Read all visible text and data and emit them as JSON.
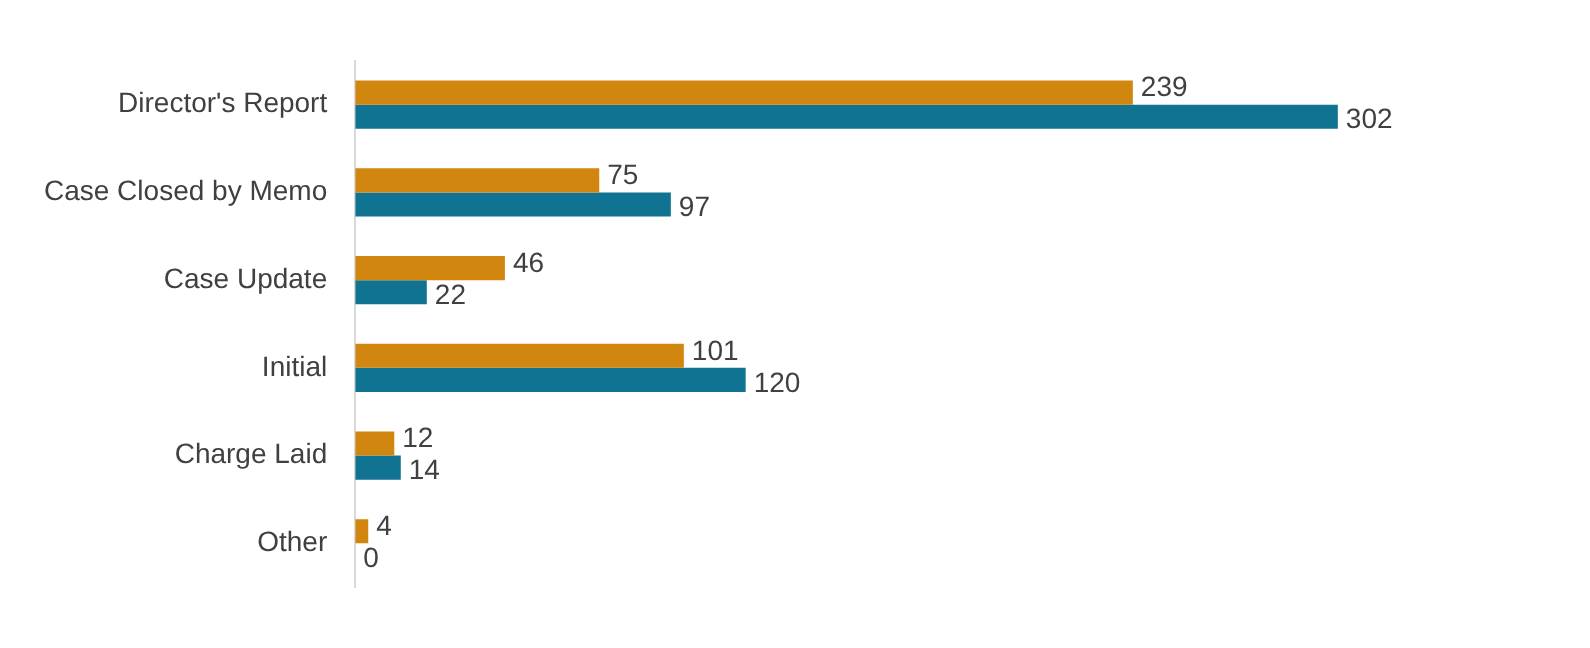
{
  "chart_data": {
    "type": "bar",
    "orientation": "horizontal",
    "categories": [
      "Director's Report",
      "Case Closed by Memo",
      "Case Update",
      "Initial",
      "Charge Laid",
      "Other"
    ],
    "series": [
      {
        "color": "#d0860f",
        "values": [
          239,
          75,
          46,
          101,
          12,
          4
        ]
      },
      {
        "color": "#0f7391",
        "values": [
          302,
          97,
          22,
          120,
          14,
          0
        ]
      }
    ],
    "data_labels": true,
    "grid": false,
    "legend": false,
    "tick_labels": "y"
  }
}
